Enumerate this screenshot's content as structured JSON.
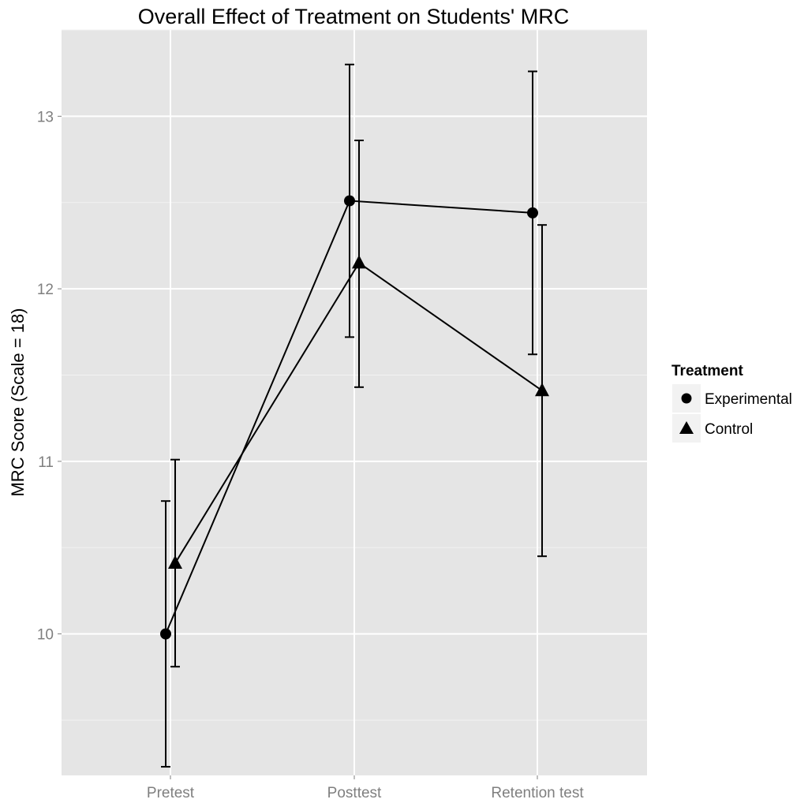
{
  "chart_data": {
    "type": "line",
    "title": "Overall Effect of Treatment on Students' MRC",
    "xlabel": "",
    "ylabel": "MRC Score (Scale = 18)",
    "categories": [
      "Pretest",
      "Posttest",
      "Retention test"
    ],
    "ylim": [
      9.18,
      13.5
    ],
    "yticks": [
      10,
      11,
      12,
      13
    ],
    "grid": true,
    "legend": {
      "title": "Treatment",
      "position": "right"
    },
    "series": [
      {
        "name": "Experimental",
        "marker": "circle",
        "values": [
          10.0,
          12.51,
          12.44
        ],
        "error_low": [
          9.23,
          11.72,
          11.62
        ],
        "error_high": [
          10.77,
          13.3,
          13.26
        ]
      },
      {
        "name": "Control",
        "marker": "triangle",
        "values": [
          10.41,
          12.15,
          11.41
        ],
        "error_low": [
          9.81,
          11.43,
          10.45
        ],
        "error_high": [
          11.01,
          12.86,
          12.37
        ]
      }
    ]
  }
}
